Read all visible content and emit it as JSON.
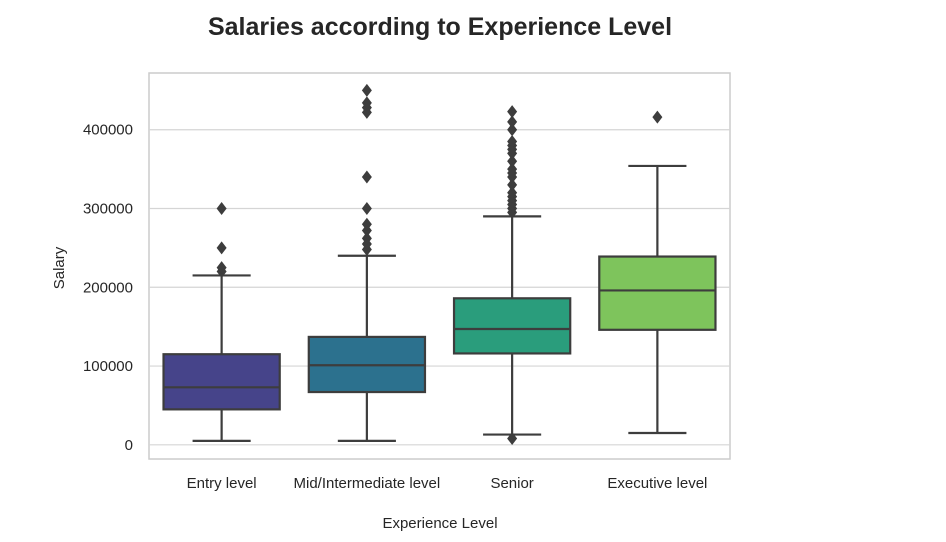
{
  "chart_data": {
    "type": "box",
    "title": "Salaries according to Experience Level",
    "xlabel": "Experience Level",
    "ylabel": "Salary",
    "ylim": [
      -18000,
      472000
    ],
    "yticks": [
      0,
      100000,
      200000,
      300000,
      400000
    ],
    "ytick_labels": [
      "0",
      "100000",
      "200000",
      "300000",
      "400000"
    ],
    "grid": true,
    "categories": [
      "Entry level",
      "Mid/Intermediate level",
      "Senior",
      "Executive level"
    ],
    "colors": [
      "#46448a",
      "#2c718e",
      "#2a9d7c",
      "#7ec45c"
    ],
    "boxes": [
      {
        "whislo": 5000,
        "q1": 45000,
        "med": 73000,
        "q3": 115000,
        "whishi": 215000,
        "fliers": [
          220000,
          225000,
          250000,
          300000
        ]
      },
      {
        "whislo": 5000,
        "q1": 67000,
        "med": 101000,
        "q3": 137000,
        "whishi": 240000,
        "fliers": [
          248000,
          255000,
          262000,
          272000,
          280000,
          300000,
          340000,
          422000,
          428000,
          434000,
          450000
        ]
      },
      {
        "whislo": 13000,
        "q1": 116000,
        "med": 147000,
        "q3": 186000,
        "whishi": 290000,
        "fliers": [
          8000,
          295000,
          300000,
          305000,
          310000,
          315000,
          320000,
          330000,
          340000,
          345000,
          350000,
          360000,
          370000,
          375000,
          380000,
          385000,
          400000,
          410000,
          423000
        ]
      },
      {
        "whislo": 15000,
        "q1": 146000,
        "med": 196000,
        "q3": 239000,
        "whishi": 354000,
        "fliers": [
          416000
        ]
      }
    ]
  }
}
